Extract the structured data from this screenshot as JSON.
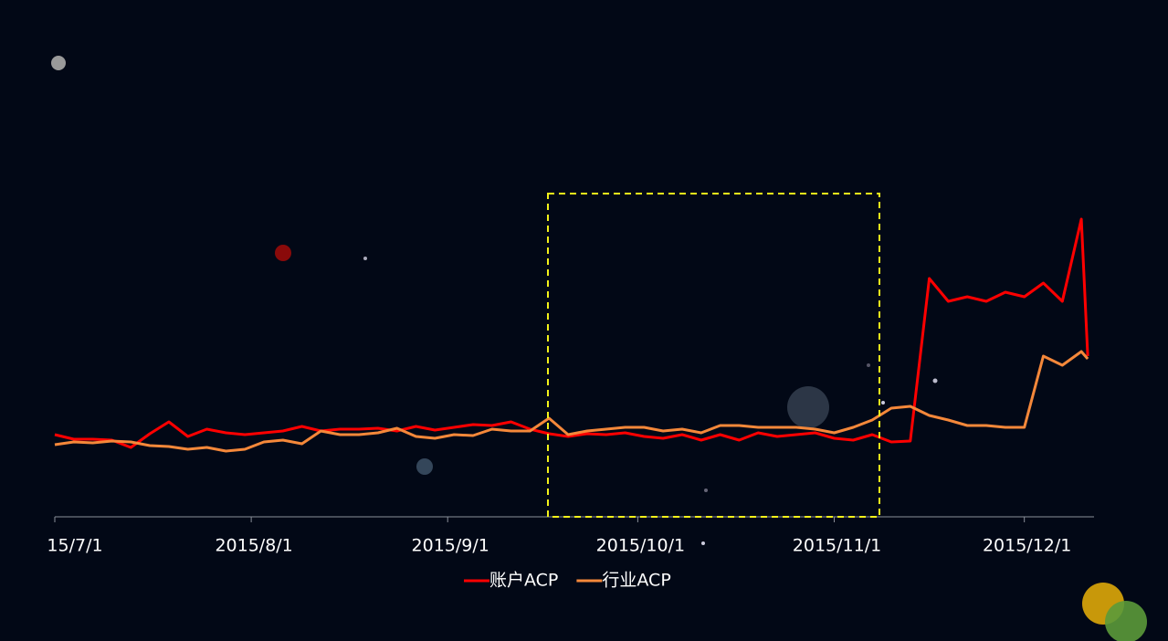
{
  "chart_data": {
    "type": "line",
    "x": [
      "2015/7/1",
      "2015/7/4",
      "2015/7/7",
      "2015/7/10",
      "2015/7/13",
      "2015/7/16",
      "2015/7/19",
      "2015/7/22",
      "2015/7/25",
      "2015/7/28",
      "2015/7/31",
      "2015/8/3",
      "2015/8/6",
      "2015/8/9",
      "2015/8/12",
      "2015/8/15",
      "2015/8/18",
      "2015/8/21",
      "2015/8/24",
      "2015/8/27",
      "2015/8/30",
      "2015/9/2",
      "2015/9/5",
      "2015/9/8",
      "2015/9/11",
      "2015/9/14",
      "2015/9/17",
      "2015/9/20",
      "2015/9/23",
      "2015/9/26",
      "2015/9/29",
      "2015/10/2",
      "2015/10/5",
      "2015/10/8",
      "2015/10/11",
      "2015/10/14",
      "2015/10/17",
      "2015/10/20",
      "2015/10/23",
      "2015/10/26",
      "2015/10/29",
      "2015/11/1",
      "2015/11/4",
      "2015/11/7",
      "2015/11/10",
      "2015/11/13",
      "2015/11/16",
      "2015/11/19",
      "2015/11/22",
      "2015/11/25",
      "2015/11/28",
      "2015/12/1",
      "2015/12/4",
      "2015/12/7",
      "2015/12/10",
      "2015/12/11"
    ],
    "series": [
      {
        "name": "账户ACP",
        "color": "#ff0000",
        "values": [
          90,
          85,
          85,
          84,
          76,
          91,
          104,
          88,
          96,
          92,
          90,
          92,
          94,
          99,
          94,
          96,
          96,
          97,
          94,
          99,
          95,
          98,
          101,
          100,
          104,
          96,
          91,
          88,
          91,
          90,
          92,
          88,
          86,
          90,
          84,
          90,
          84,
          92,
          88,
          90,
          92,
          86,
          84,
          90,
          82,
          83,
          261,
          236,
          241,
          236,
          246,
          241,
          256,
          236,
          326,
          176
        ]
      },
      {
        "name": "行业ACP",
        "color": "#f5883a",
        "values": [
          79,
          82,
          81,
          83,
          82,
          78,
          77,
          74,
          76,
          72,
          74,
          82,
          84,
          80,
          94,
          90,
          90,
          92,
          97,
          88,
          86,
          90,
          89,
          96,
          94,
          94,
          108,
          90,
          94,
          96,
          98,
          98,
          94,
          96,
          92,
          100,
          100,
          98,
          98,
          98,
          96,
          92,
          98,
          106,
          119,
          121,
          111,
          106,
          100,
          100,
          98,
          98,
          176,
          166,
          181,
          173
        ]
      }
    ],
    "xlim": [
      "2015/7/1",
      "2015/12/12"
    ],
    "xticks": [
      {
        "value": "2015/7/1",
        "label": "15/7/1"
      },
      "2015/8/1",
      "2015/9/1",
      "2015/10/1",
      "2015/11/1",
      "2015/12/1"
    ],
    "ylim": [
      0,
      360
    ]
  }
}
